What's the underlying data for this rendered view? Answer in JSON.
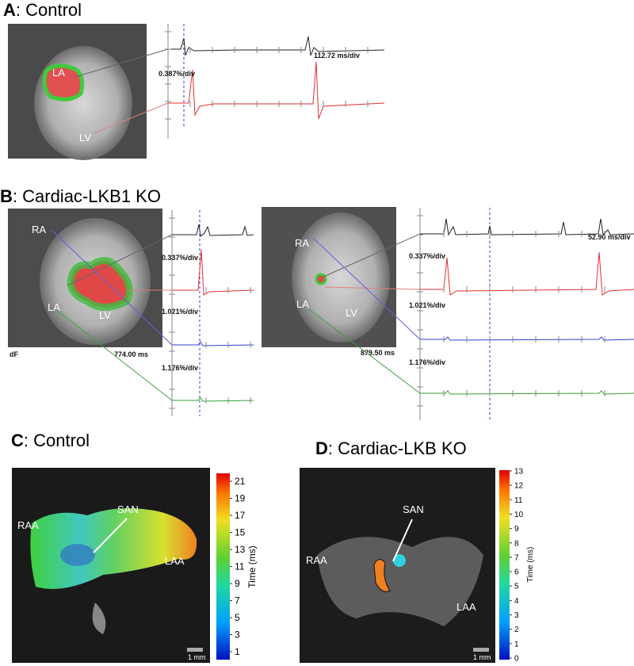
{
  "panels": {
    "a": {
      "letter": "A",
      "title": ": Control",
      "labels": [
        "LA",
        "LV"
      ],
      "time_scale": "112.72 ms/div",
      "amp_scale": "0.387%/div"
    },
    "b": {
      "letter": "B",
      "title": ": Cardiac-LKB1 KO",
      "left": {
        "labels": [
          "RA",
          "LA",
          "LV"
        ],
        "dF": "dF",
        "time": "774.00 ms",
        "amp_scales": [
          "0.337%/div",
          "1.021%/div",
          "1.176%/div"
        ]
      },
      "right": {
        "labels": [
          "RA",
          "LA",
          "LV"
        ],
        "time": "879.50 ms",
        "time_scale": "52.90 ms/div",
        "amp_scales": [
          "0.337%/div",
          "1.021%/div",
          "1.176%/div"
        ]
      }
    },
    "c": {
      "letter": "C",
      "title": ": Control",
      "labels": [
        "RAA",
        "SAN",
        "LAA"
      ],
      "scale_bar": "1 mm",
      "colorbar": {
        "label": "Time (ms)",
        "ticks": [
          1,
          3,
          5,
          7,
          9,
          11,
          13,
          15,
          17,
          19,
          21
        ]
      }
    },
    "d": {
      "letter": "D",
      "title": ": Cardiac-LKB KO",
      "labels": [
        "RAA",
        "SAN",
        "LAA"
      ],
      "scale_bar": "1 mm",
      "colorbar": {
        "label": "Time (ms)",
        "ticks": [
          0,
          1,
          2,
          3,
          4,
          5,
          6,
          7,
          8,
          9,
          10,
          11,
          12,
          13
        ]
      }
    }
  }
}
